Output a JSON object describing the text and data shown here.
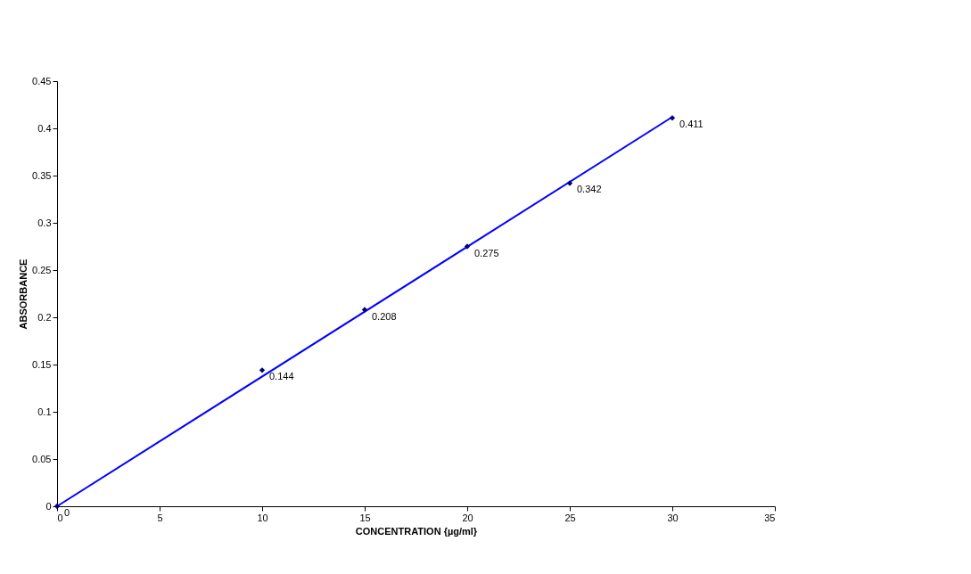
{
  "chart_data": {
    "type": "scatter",
    "xlabel": "CONCENTRATION {µg/ml}",
    "ylabel": "ABSORBANCE",
    "x": [
      0,
      10,
      15,
      20,
      25,
      30
    ],
    "series": [
      {
        "color": "#000080",
        "marker": "diamond",
        "values": [
          0,
          0.144,
          0.208,
          0.275,
          0.342,
          0.411
        ],
        "value_labels": [
          "0",
          "0.144",
          "0.208",
          "0.275",
          "0.342",
          "0.411"
        ]
      },
      {
        "type": "line",
        "color": "#0000ff",
        "line_style": "solid",
        "marker": "none",
        "x": [
          0,
          30
        ],
        "values": [
          0,
          0.412
        ]
      }
    ],
    "xlim": [
      0,
      35
    ],
    "xticks": [
      0,
      5,
      10,
      15,
      20,
      25,
      30,
      35
    ],
    "ylim": [
      0,
      0.45
    ],
    "yticks": [
      0,
      0.05,
      0.1,
      0.15,
      0.2,
      0.25,
      0.3,
      0.35,
      0.4,
      0.45
    ],
    "grid": false,
    "legend": false
  }
}
